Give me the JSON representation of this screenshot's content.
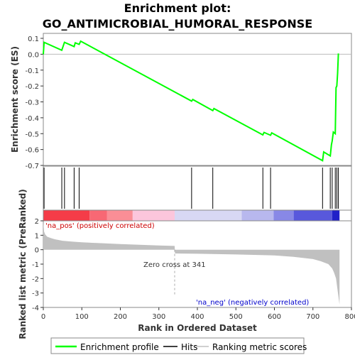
{
  "title_line1": "Enrichment plot:",
  "title_line2": "GO_ANTIMICROBIAL_HUMORAL_RESPONSE",
  "colors": {
    "es_line": "#00ff00",
    "hits": "#000000",
    "metric_fill": "#c0c0c0",
    "pos_label": "#cc0000",
    "neg_label": "#0000cc",
    "zero_cross_line": "#aaaaaa"
  },
  "chart_data": [
    {
      "type": "line",
      "name": "enrichment-profile",
      "ylabel": "Enrichment score (ES)",
      "ylim": [
        -0.7,
        0.1
      ],
      "yticks": [
        0.1,
        0.0,
        -0.1,
        -0.2,
        -0.3,
        -0.4,
        -0.5,
        -0.6,
        -0.7
      ],
      "ytick_labels": [
        "0.1",
        "0.0",
        "-0.1",
        "-0.2",
        "-0.3",
        "-0.4",
        "-0.5",
        "-0.6",
        "-0.7"
      ],
      "xlim": [
        0,
        800
      ],
      "x": [
        0,
        2,
        48,
        55,
        80,
        83,
        93,
        97,
        385,
        388,
        440,
        443,
        570,
        573,
        590,
        593,
        725,
        728,
        745,
        748,
        750,
        753,
        758,
        760,
        762,
        764,
        766
      ],
      "y": [
        0.0,
        0.075,
        0.025,
        0.075,
        0.048,
        0.072,
        0.062,
        0.082,
        -0.295,
        -0.285,
        -0.355,
        -0.342,
        -0.508,
        -0.492,
        -0.51,
        -0.495,
        -0.67,
        -0.615,
        -0.64,
        -0.57,
        -0.545,
        -0.49,
        -0.5,
        -0.21,
        -0.2,
        -0.12,
        0.005
      ],
      "grid": false
    },
    {
      "type": "scatter",
      "name": "hits",
      "xlim": [
        0,
        800
      ],
      "x": [
        2,
        48,
        55,
        80,
        93,
        385,
        440,
        570,
        590,
        725,
        745,
        750,
        758,
        762,
        766
      ]
    },
    {
      "type": "heatmap",
      "name": "rank-color-bar",
      "xlim": [
        0,
        800
      ],
      "segments": [
        {
          "from": 0,
          "to": 120,
          "color": "#f53c48"
        },
        {
          "from": 120,
          "to": 165,
          "color": "#f86874"
        },
        {
          "from": 165,
          "to": 232,
          "color": "#fa8e96"
        },
        {
          "from": 232,
          "to": 341,
          "color": "#fcc6dc"
        },
        {
          "from": 341,
          "to": 515,
          "color": "#d8d8f4"
        },
        {
          "from": 515,
          "to": 598,
          "color": "#b8b8ee"
        },
        {
          "from": 598,
          "to": 650,
          "color": "#8888e6"
        },
        {
          "from": 650,
          "to": 750,
          "color": "#5858dc"
        },
        {
          "from": 750,
          "to": 769,
          "color": "#2020c8"
        }
      ]
    },
    {
      "type": "area",
      "name": "ranked-list-metric",
      "ylabel": "Ranked list metric (PreRanked)",
      "xlabel": "Rank in Ordered Dataset",
      "xlim": [
        0,
        800
      ],
      "ylim": [
        -4,
        2
      ],
      "xticks": [
        0,
        100,
        200,
        300,
        400,
        500,
        600,
        700,
        800
      ],
      "yticks": [
        2,
        1,
        0,
        -1,
        -2,
        -3,
        -4
      ],
      "ytick_labels": [
        "2",
        "1",
        "0",
        "-1",
        "-2",
        "-3",
        "-4"
      ],
      "x": [
        0,
        2,
        5,
        10,
        20,
        30,
        50,
        80,
        100,
        150,
        200,
        250,
        300,
        341,
        342,
        400,
        500,
        600,
        650,
        700,
        720,
        740,
        750,
        755,
        760,
        765,
        769
      ],
      "y": [
        1.9,
        1.25,
        1.05,
        0.9,
        0.8,
        0.72,
        0.62,
        0.55,
        0.51,
        0.45,
        0.39,
        0.34,
        0.29,
        0.26,
        -0.26,
        -0.28,
        -0.33,
        -0.4,
        -0.5,
        -0.65,
        -0.8,
        -1.0,
        -1.3,
        -1.6,
        -2.0,
        -3.0,
        -3.8
      ],
      "zero_cross": 341,
      "annotations": {
        "pos": "'na_pos' (positively correlated)",
        "neg": "'na_neg' (negatively correlated)",
        "zero_cross": "Zero cross at 341"
      }
    }
  ],
  "legend": {
    "items": [
      {
        "label": "Enrichment profile",
        "color": "#00ff00"
      },
      {
        "label": "Hits",
        "color": "#000000"
      },
      {
        "label": "Ranking metric scores",
        "color": "#c0c0c0"
      }
    ]
  }
}
